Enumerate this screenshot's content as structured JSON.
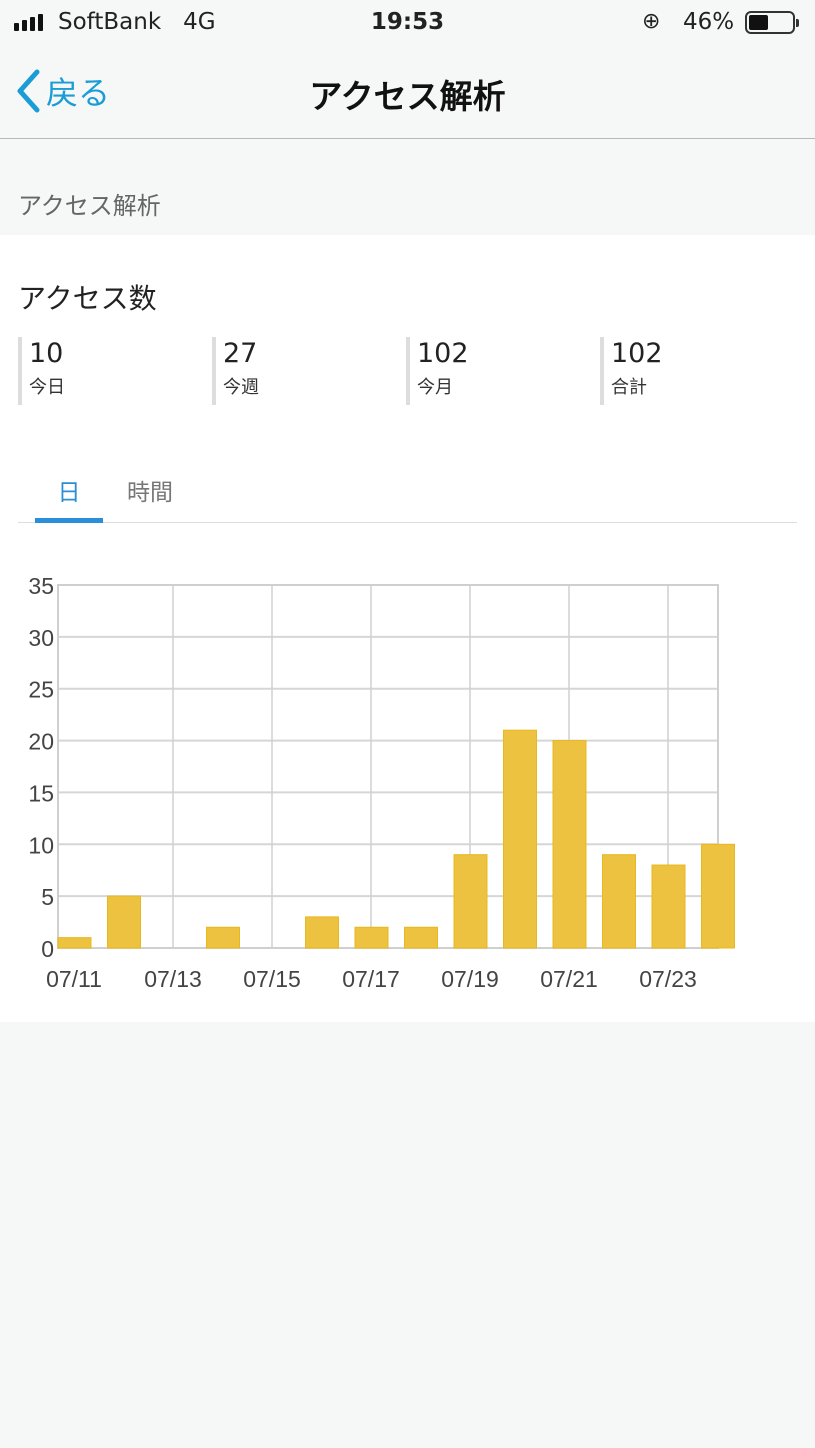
{
  "status_bar": {
    "carrier": "SoftBank",
    "network": "4G",
    "time": "19:53",
    "battery": "46%",
    "battery_level": 0.46,
    "icons": [
      "signal-icon",
      "orientation-lock-icon",
      "battery-icon"
    ]
  },
  "nav": {
    "back_label": "戻る",
    "title": "アクセス解析"
  },
  "section_header": "アクセス解析",
  "card": {
    "title": "アクセス数",
    "stats": [
      {
        "value": "10",
        "label": "今日"
      },
      {
        "value": "27",
        "label": "今週"
      },
      {
        "value": "102",
        "label": "今月"
      },
      {
        "value": "102",
        "label": "合計"
      }
    ],
    "tabs": [
      {
        "label": "日",
        "active": true
      },
      {
        "label": "時間",
        "active": false
      }
    ]
  },
  "colors": {
    "accent": "#2a8fd6",
    "back": "#1a9dd6",
    "bar": "#ecc240"
  },
  "chart_data": {
    "type": "bar",
    "categories": [
      "07/11",
      "07/12",
      "07/13",
      "07/14",
      "07/15",
      "07/16",
      "07/17",
      "07/18",
      "07/19",
      "07/20",
      "07/21",
      "07/22",
      "07/23",
      "07/24"
    ],
    "values": [
      1,
      5,
      0,
      2,
      0,
      3,
      2,
      2,
      9,
      21,
      20,
      9,
      8,
      10
    ],
    "x_tick_labels": [
      "07/11",
      "07/13",
      "07/15",
      "07/17",
      "07/19",
      "07/21",
      "07/23"
    ],
    "y_ticks": [
      0,
      5,
      10,
      15,
      20,
      25,
      30,
      35
    ],
    "ylim": [
      0,
      35
    ],
    "grid": true,
    "title": "",
    "xlabel": "",
    "ylabel": ""
  }
}
